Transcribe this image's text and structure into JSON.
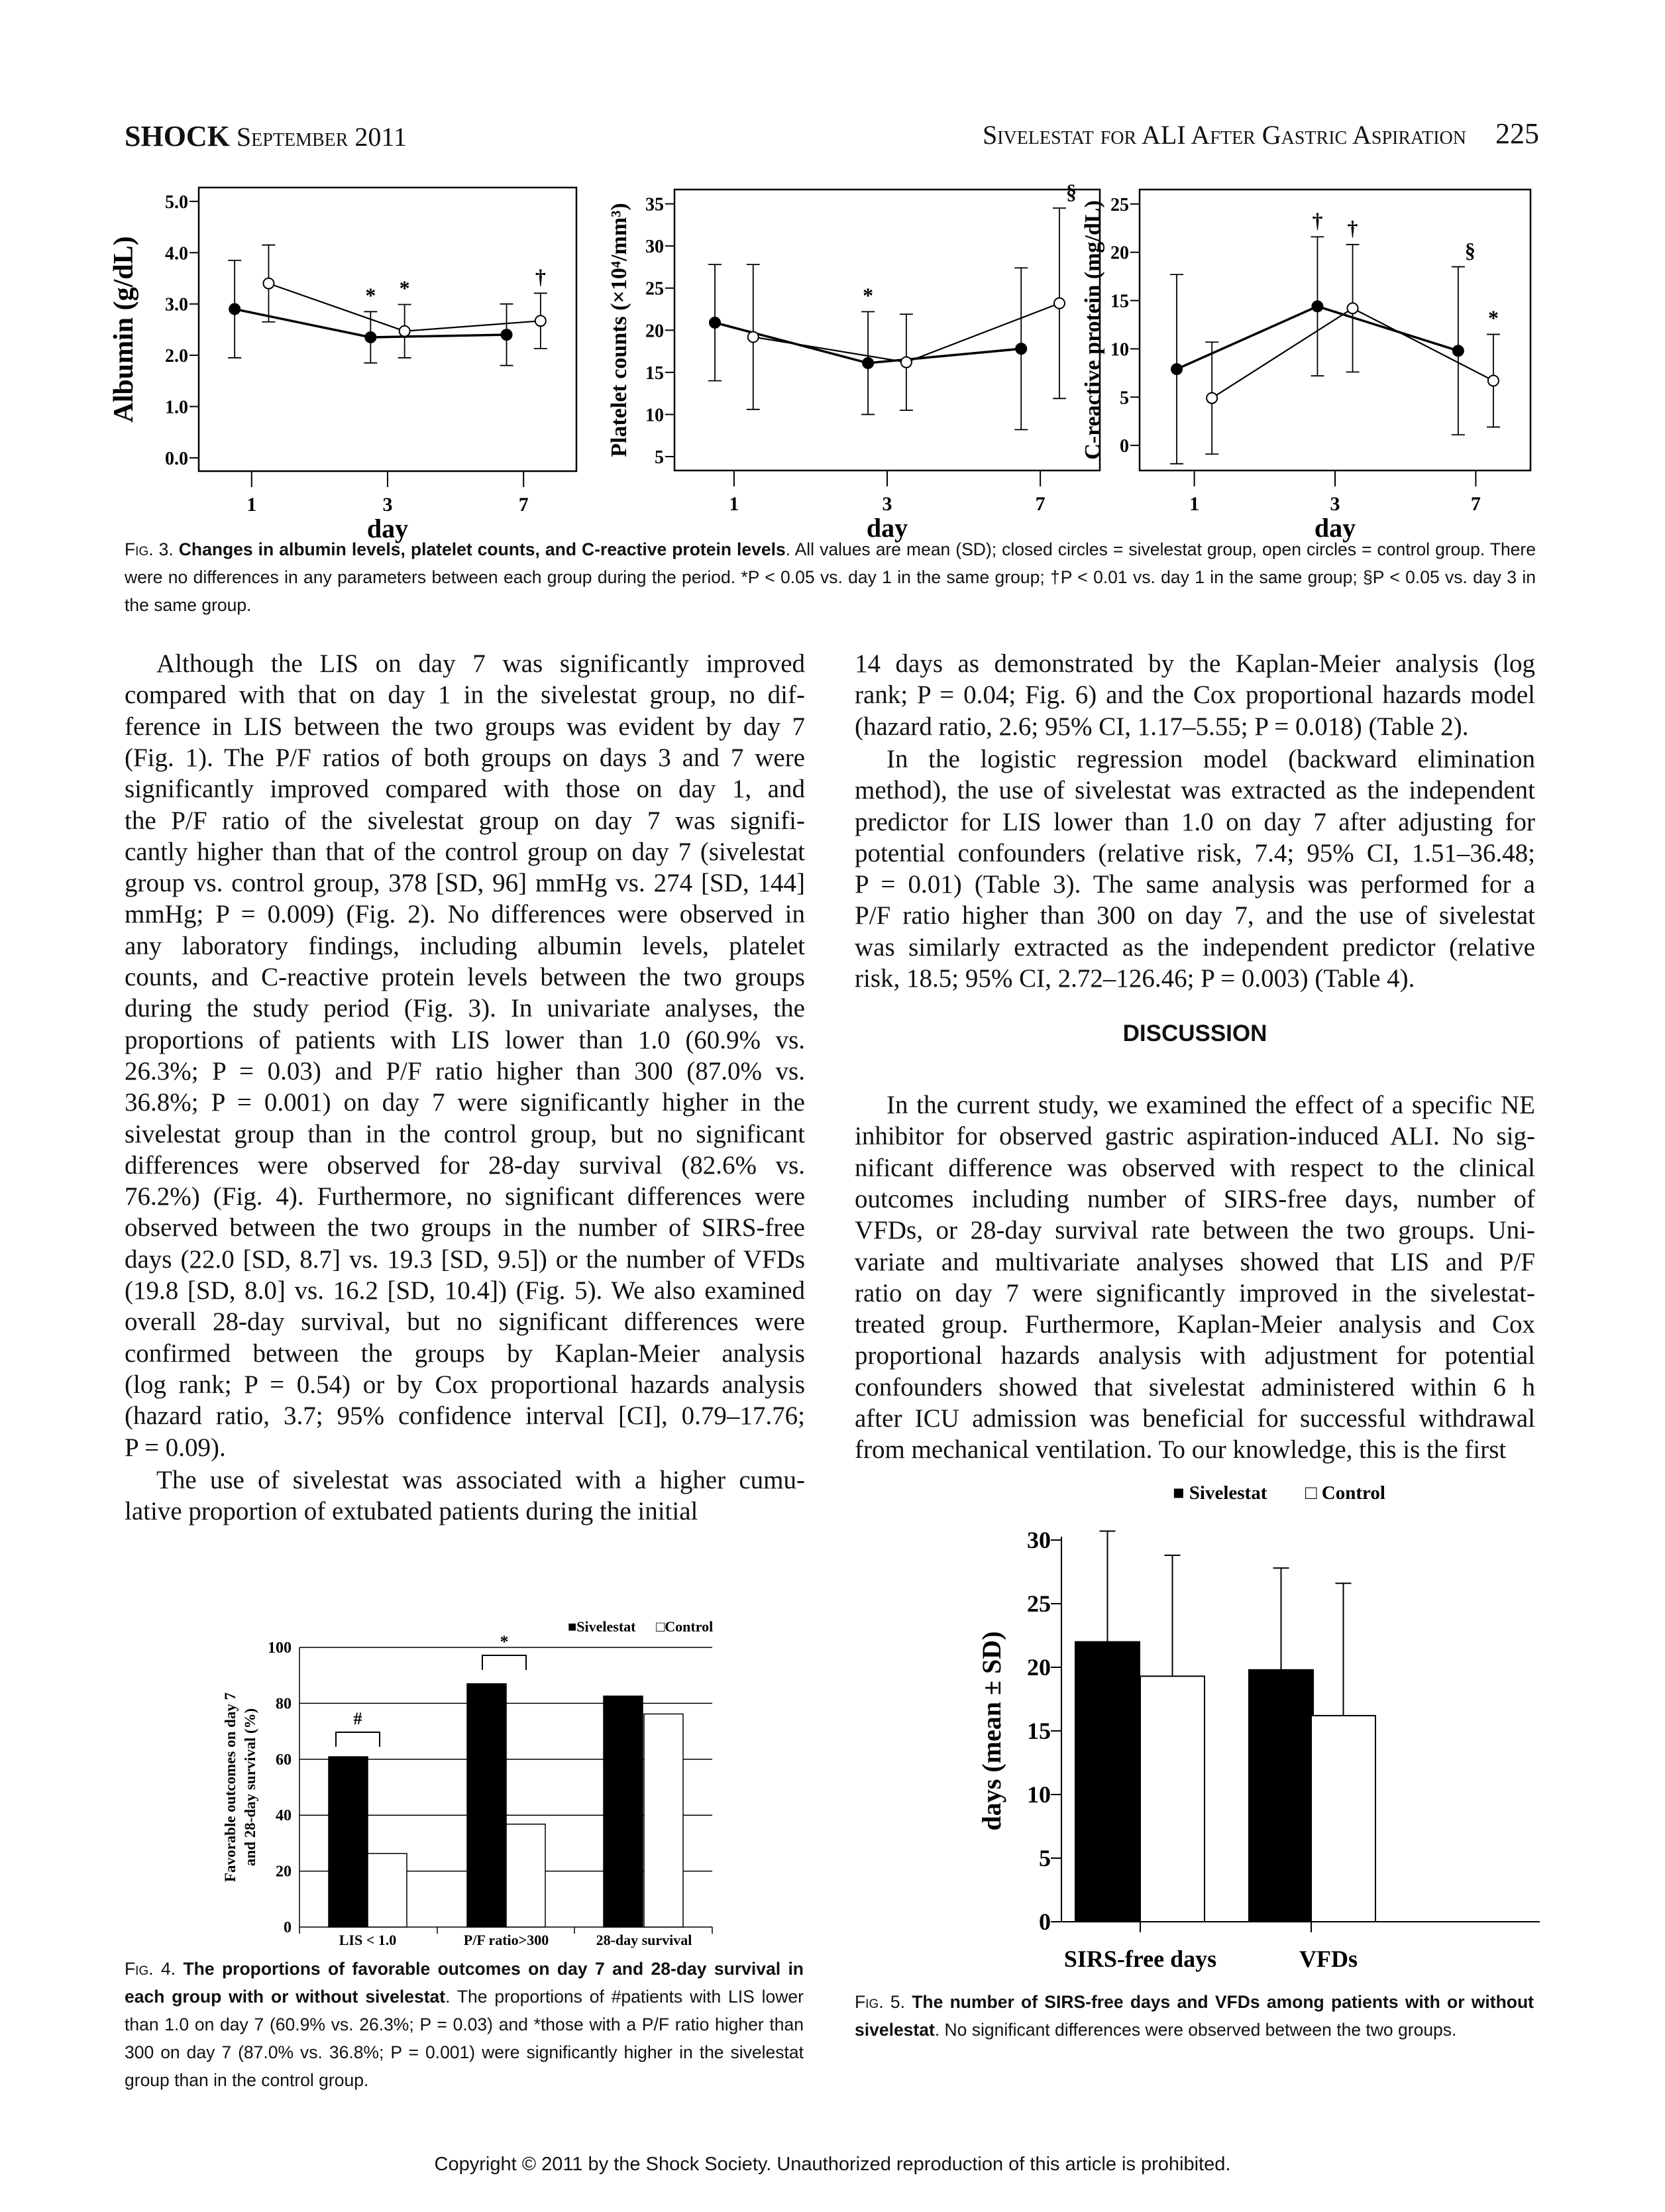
{
  "header": {
    "journal": "SHOCK",
    "issue": "September 2011",
    "running_title": "Sivelestat for ALI After Gastric Aspiration",
    "page": "225"
  },
  "fig3_caption": {
    "label": "Fig. 3.",
    "title": "Changes in albumin levels, platelet counts, and C-reactive protein levels",
    "text": ". All values are mean (SD); closed circles = sivelestat group, open circles = control group. There were no differences in any parameters between each group during the period. *P < 0.05 vs. day 1 in the same group; †P < 0.01 vs. day 1 in the same group; §P < 0.05 vs. day 3 in the same group."
  },
  "left_column": {
    "p1": [
      "Although the LIS on day 7 was significantly improved",
      "compared with that on day 1 in the sivelestat group, no dif-",
      "ference in LIS between the two groups was evident by day 7",
      "(Fig. 1). The P/F ratios of both groups on days 3 and 7 were",
      "significantly improved compared with those on day 1, and",
      "the P/F ratio of the sivelestat group on day 7 was signifi-",
      "cantly higher than that of the control group on day 7 (sivelestat",
      "group vs. control group, 378 [SD, 96] mmHg vs. 274 [SD, 144]",
      "mmHg; P = 0.009) (Fig. 2). No differences were observed in",
      "any laboratory findings, including albumin levels, platelet",
      "counts, and C-reactive protein levels between the two groups",
      "during the study period (Fig. 3). In univariate analyses, the",
      "proportions of patients with LIS lower than 1.0 (60.9% vs.",
      "26.3%; P = 0.03) and P/F ratio higher than 300 (87.0% vs.",
      "36.8%; P = 0.001) on day 7 were significantly higher in the",
      "sivelestat group than in the control group, but no significant",
      "differences were observed for 28-day survival (82.6% vs.",
      "76.2%) (Fig. 4). Furthermore, no significant differences were",
      "observed between the two groups in the number of SIRS-free",
      "days (22.0 [SD, 8.7] vs. 19.3 [SD, 9.5]) or the number of VFDs",
      "(19.8 [SD, 8.0] vs. 16.2 [SD, 10.4]) (Fig. 5). We also examined",
      "overall 28-day survival, but no significant differences were",
      "confirmed between the groups by Kaplan-Meier analysis",
      "(log rank; P = 0.54) or by Cox proportional hazards analysis",
      "(hazard ratio, 3.7; 95% confidence interval [CI], 0.79–17.76;",
      "P = 0.09)."
    ],
    "p2": [
      "The use of sivelestat was associated with a higher cumu-",
      "lative proportion of extubated patients during the initial"
    ]
  },
  "right_column": {
    "p3": [
      "14 days as demonstrated by the Kaplan-Meier analysis (log",
      "rank; P = 0.04; Fig. 6) and the Cox proportional hazards model",
      "(hazard ratio, 2.6; 95% CI, 1.17–5.55; P = 0.018) (Table 2)."
    ],
    "p4": [
      "In the logistic regression model (backward elimination",
      "method), the use of sivelestat was extracted as the independent",
      "predictor for LIS lower than 1.0 on day 7 after adjusting for",
      "potential confounders (relative risk, 7.4; 95% CI, 1.51–36.48;",
      "P = 0.01) (Table 3). The same analysis was performed for a",
      "P/F ratio higher than 300 on day 7, and the use of sivelestat",
      "was similarly extracted as the independent predictor (relative",
      "risk, 18.5; 95% CI, 2.72–126.46; P = 0.003) (Table 4)."
    ],
    "heading": "DISCUSSION",
    "p5": [
      "In the current study, we examined the effect of a specific NE",
      "inhibitor for observed gastric aspiration-induced ALI. No sig-",
      "nificant difference was observed with respect to the clinical",
      "outcomes including number of SIRS-free days, number of",
      "VFDs, or 28-day survival rate between the two groups. Uni-",
      "variate and multivariate analyses showed that LIS and P/F",
      "ratio on day 7 were significantly improved in the sivelestat-",
      "treated group. Furthermore, Kaplan-Meier analysis and Cox",
      "proportional hazards analysis with adjustment for potential",
      "confounders showed that sivelestat administered within 6 h",
      "after ICU admission was beneficial for successful withdrawal",
      "from mechanical ventilation. To our knowledge, this is the first"
    ]
  },
  "fig4_caption": {
    "label": "Fig. 4.",
    "title": "The proportions of favorable outcomes on day 7 and 28-day survival in each group with or without sivelestat",
    "text": ". The proportions of #patients with LIS lower than 1.0 on day 7 (60.9% vs. 26.3%; P = 0.03) and *those with a P/F ratio higher than 300 on day 7 (87.0% vs. 36.8%; P = 0.001) were significantly higher in the sivelestat group than in the control group."
  },
  "fig5_caption": {
    "label": "Fig. 5.",
    "title": "The number of SIRS-free days and VFDs among patients with or without sivelestat",
    "text": ". No significant differences were observed between the two groups."
  },
  "footer": "Copyright © 2011 by the Shock Society. Unauthorized reproduction of this article is prohibited.",
  "chart_data": [
    {
      "type": "line",
      "title": "Albumin",
      "ylabel": "Albumin (g/dL)",
      "xlabel": "day",
      "x": [
        "1",
        "3",
        "7"
      ],
      "ylim": [
        -0.26,
        5.27
      ],
      "yticks": [
        "0.0",
        "1.0",
        "2.0",
        "3.0",
        "4.0",
        "5.0"
      ],
      "ytick_values": [
        0,
        1,
        2,
        3,
        4,
        5
      ],
      "series": [
        {
          "name": "Sivelestat",
          "marker": "closed",
          "mean": [
            2.9,
            2.35,
            2.4
          ],
          "sd": [
            0.95,
            0.5,
            0.6
          ],
          "annotations": [
            "",
            "*",
            ""
          ]
        },
        {
          "name": "Control",
          "marker": "open",
          "mean": [
            3.4,
            2.47,
            2.67
          ],
          "sd": [
            0.75,
            0.52,
            0.54
          ],
          "annotations": [
            "",
            "*",
            "†"
          ]
        }
      ]
    },
    {
      "type": "line",
      "title": "Platelet counts",
      "ylabel": "Platelet counts (×10⁴/mm³)",
      "xlabel": "day",
      "x": [
        "1",
        "3",
        "7"
      ],
      "ylim": [
        3.35,
        36.7
      ],
      "yticks": [
        "5",
        "10",
        "15",
        "20",
        "25",
        "30",
        "35"
      ],
      "ytick_values": [
        5,
        10,
        15,
        20,
        25,
        30,
        35
      ],
      "series": [
        {
          "name": "Sivelestat",
          "marker": "closed",
          "mean": [
            20.9,
            16.1,
            17.8
          ],
          "sd": [
            6.9,
            6.1,
            9.6
          ],
          "annotations": [
            "",
            "*",
            ""
          ]
        },
        {
          "name": "Control",
          "marker": "open",
          "mean": [
            19.2,
            16.2,
            23.2
          ],
          "sd": [
            8.6,
            5.7,
            11.3
          ],
          "annotations": [
            "",
            "",
            "§"
          ]
        }
      ]
    },
    {
      "type": "line",
      "title": "C-reactive protein",
      "ylabel": "C-reactive protein (mg/dL)",
      "xlabel": "day",
      "x": [
        "1",
        "3",
        "7"
      ],
      "ylim": [
        -2.6,
        26.5
      ],
      "yticks": [
        "0",
        "5",
        "10",
        "15",
        "20",
        "25"
      ],
      "ytick_values": [
        0,
        5,
        10,
        15,
        20,
        25
      ],
      "series": [
        {
          "name": "Sivelestat",
          "marker": "closed",
          "mean": [
            7.9,
            14.4,
            9.8
          ],
          "sd": [
            9.8,
            7.2,
            8.7
          ],
          "annotations": [
            "",
            "†",
            "§"
          ]
        },
        {
          "name": "Control",
          "marker": "open",
          "mean": [
            4.9,
            14.2,
            6.7
          ],
          "sd": [
            5.8,
            6.6,
            4.8
          ],
          "annotations": [
            "",
            "†",
            "*"
          ]
        }
      ]
    },
    {
      "type": "bar",
      "title": "Favorable outcomes",
      "ylabel": [
        "Favorable outcomes on day 7",
        "and 28-day survival (%)"
      ],
      "categories": [
        "LIS < 1.0",
        "P/F ratio>300",
        "28-day survival"
      ],
      "ylim": [
        0,
        100
      ],
      "yticks": [
        "0",
        "20",
        "40",
        "60",
        "80",
        "100"
      ],
      "ytick_values": [
        0,
        20,
        40,
        60,
        80,
        100
      ],
      "series": [
        {
          "name": "Sivelestat",
          "color": "#000000",
          "values": [
            60.9,
            87.0,
            82.6
          ]
        },
        {
          "name": "Control",
          "color": "#ffffff",
          "values": [
            26.3,
            36.8,
            76.2
          ]
        }
      ],
      "legend": [
        "■Sivelestat",
        "□Control"
      ],
      "significance": [
        {
          "category": 0,
          "mark": "#"
        },
        {
          "category": 1,
          "mark": "*"
        }
      ]
    },
    {
      "type": "bar",
      "title": "SIRS-free days and VFDs",
      "ylabel": "days (mean ± SD)",
      "categories": [
        "SIRS-free days",
        "VFDs"
      ],
      "ylim": [
        0,
        30
      ],
      "yticks": [
        "0",
        "5",
        "10",
        "15",
        "20",
        "25",
        "30"
      ],
      "ytick_values": [
        0,
        5,
        10,
        15,
        20,
        25,
        30
      ],
      "series": [
        {
          "name": "Sivelestat",
          "color": "#000000",
          "values": [
            22.0,
            19.8
          ],
          "sd": [
            8.7,
            8.0
          ]
        },
        {
          "name": "Control",
          "color": "#ffffff",
          "values": [
            19.3,
            16.2
          ],
          "sd": [
            9.5,
            10.4
          ]
        }
      ],
      "legend": [
        "■ Sivelestat",
        "□ Control"
      ]
    }
  ]
}
